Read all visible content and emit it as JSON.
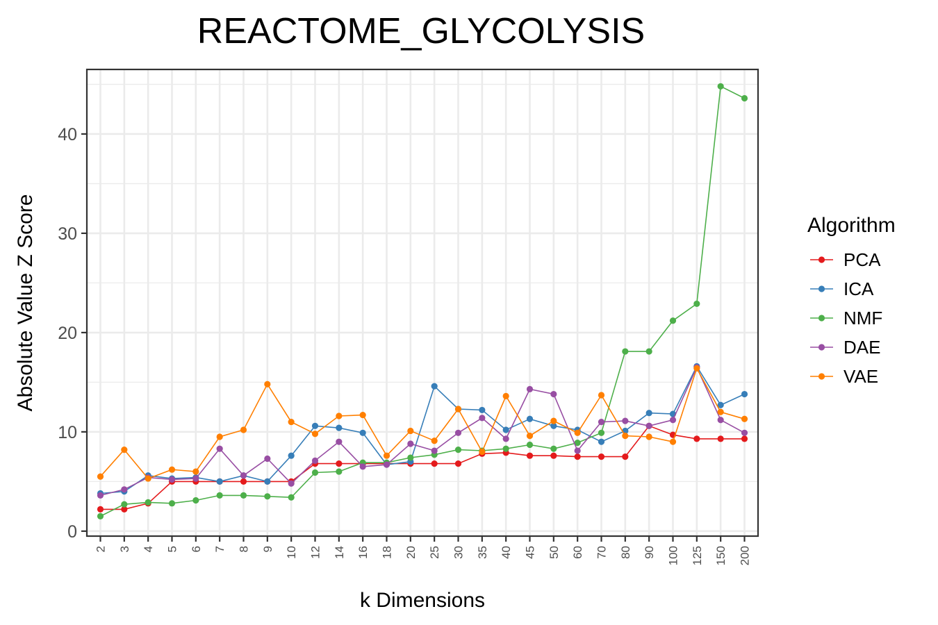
{
  "chart_data": {
    "type": "line",
    "title": "REACTOME_GLYCOLYSIS",
    "xlabel": "k Dimensions",
    "ylabel": "Absolute Value Z Score",
    "categories": [
      "2",
      "3",
      "4",
      "5",
      "6",
      "7",
      "8",
      "9",
      "10",
      "12",
      "14",
      "16",
      "18",
      "20",
      "25",
      "30",
      "35",
      "40",
      "45",
      "50",
      "60",
      "70",
      "80",
      "90",
      "100",
      "125",
      "150",
      "200"
    ],
    "yticks": [
      0,
      10,
      20,
      30,
      40
    ],
    "ylim": [
      -0.5,
      46.5
    ],
    "grid": true,
    "legend_title": "Algorithm",
    "legend_position": "right",
    "series": [
      {
        "name": "PCA",
        "color": "#e41a1c",
        "values": [
          2.2,
          2.2,
          2.8,
          5.0,
          5.0,
          5.0,
          5.0,
          5.0,
          5.0,
          6.8,
          6.8,
          6.8,
          6.8,
          6.8,
          6.8,
          6.8,
          7.8,
          7.9,
          7.6,
          7.6,
          7.5,
          7.5,
          7.5,
          10.6,
          9.7,
          9.3,
          9.3,
          9.3
        ]
      },
      {
        "name": "ICA",
        "color": "#377eb8",
        "values": [
          3.8,
          4.0,
          5.6,
          5.3,
          5.4,
          5.0,
          5.6,
          5.0,
          7.6,
          10.6,
          10.4,
          9.9,
          6.7,
          7.0,
          14.6,
          12.3,
          12.2,
          10.2,
          11.3,
          10.6,
          10.2,
          9.0,
          10.1,
          11.9,
          11.8,
          16.6,
          12.7,
          13.8
        ]
      },
      {
        "name": "NMF",
        "color": "#4daf4a",
        "values": [
          1.5,
          2.7,
          2.9,
          2.8,
          3.1,
          3.6,
          3.6,
          3.5,
          3.4,
          5.9,
          6.0,
          6.9,
          6.9,
          7.4,
          7.7,
          8.2,
          8.1,
          8.3,
          8.7,
          8.3,
          8.9,
          9.9,
          18.1,
          18.1,
          21.2,
          22.9,
          44.8,
          43.6
        ]
      },
      {
        "name": "DAE",
        "color": "#984ea3",
        "values": [
          3.6,
          4.2,
          5.4,
          5.2,
          5.3,
          8.3,
          5.6,
          7.3,
          4.8,
          7.1,
          9.0,
          6.5,
          6.7,
          8.8,
          8.1,
          9.9,
          11.4,
          9.3,
          14.3,
          13.8,
          8.1,
          11.0,
          11.1,
          10.6,
          11.2,
          16.5,
          11.2,
          9.9
        ]
      },
      {
        "name": "VAE",
        "color": "#ff7f00",
        "values": [
          5.5,
          8.2,
          5.3,
          6.2,
          6.0,
          9.5,
          10.2,
          14.8,
          11.0,
          9.8,
          11.6,
          11.7,
          7.6,
          10.1,
          9.1,
          12.3,
          8.0,
          13.6,
          9.6,
          11.1,
          9.9,
          13.7,
          9.6,
          9.5,
          9.0,
          16.4,
          12.0,
          11.3
        ]
      }
    ]
  }
}
